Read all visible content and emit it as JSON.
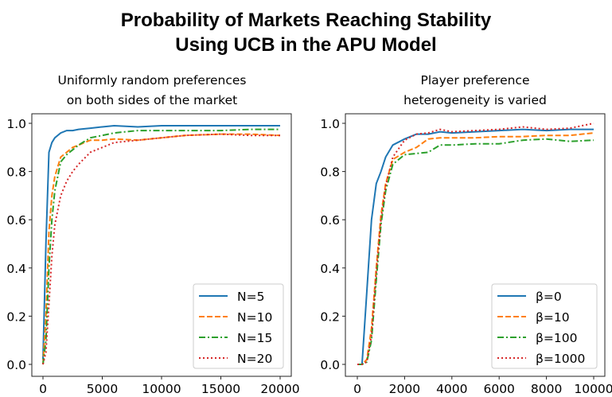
{
  "title_lines": [
    "Probability of Markets Reaching Stability",
    "Using UCB in the APU Model"
  ],
  "chart_data": [
    {
      "type": "line",
      "title_lines": [
        "Uniformly random preferences",
        "on both sides of the market"
      ],
      "xlim": [
        0,
        20000
      ],
      "ylim": [
        0,
        1.0
      ],
      "xticks": [
        0,
        5000,
        10000,
        15000,
        20000
      ],
      "xtick_labels": [
        "0",
        "5000",
        "10000",
        "15000",
        "20000"
      ],
      "yticks": [
        0,
        0.2,
        0.4,
        0.6,
        0.8,
        1.0
      ],
      "ytick_labels": [
        "0.0",
        "0.2",
        "0.4",
        "0.6",
        "0.8",
        "1.0"
      ],
      "grid": false,
      "legend": "bottom-right",
      "x": [
        0,
        250,
        500,
        750,
        1000,
        1500,
        2000,
        2500,
        3000,
        4000,
        5000,
        6000,
        8000,
        10000,
        12000,
        15000,
        17500,
        20000
      ],
      "series": [
        {
          "name": "N=5",
          "color": "#1f77b4",
          "style": "solid",
          "values": [
            0.02,
            0.5,
            0.88,
            0.92,
            0.94,
            0.96,
            0.97,
            0.97,
            0.975,
            0.98,
            0.985,
            0.99,
            0.985,
            0.99,
            0.99,
            0.99,
            0.99,
            0.99
          ]
        },
        {
          "name": "N=10",
          "color": "#ff7f0e",
          "style": "dashed",
          "values": [
            0,
            0.2,
            0.55,
            0.7,
            0.78,
            0.86,
            0.88,
            0.9,
            0.91,
            0.93,
            0.93,
            0.935,
            0.93,
            0.94,
            0.95,
            0.955,
            0.955,
            0.95
          ]
        },
        {
          "name": "N=15",
          "color": "#2ca02c",
          "style": "dashdot",
          "values": [
            0,
            0.1,
            0.4,
            0.6,
            0.72,
            0.84,
            0.87,
            0.89,
            0.91,
            0.94,
            0.95,
            0.96,
            0.97,
            0.97,
            0.97,
            0.97,
            0.975,
            0.975
          ]
        },
        {
          "name": "N=20",
          "color": "#d62728",
          "style": "dotted",
          "values": [
            0,
            0.05,
            0.25,
            0.45,
            0.58,
            0.7,
            0.76,
            0.8,
            0.83,
            0.88,
            0.9,
            0.92,
            0.93,
            0.94,
            0.95,
            0.955,
            0.95,
            0.95
          ]
        }
      ]
    },
    {
      "type": "line",
      "title_lines": [
        "Player preference",
        "heterogeneity is varied"
      ],
      "xlim": [
        0,
        10000
      ],
      "ylim": [
        0,
        1.0
      ],
      "xticks": [
        0,
        2000,
        4000,
        6000,
        8000,
        10000
      ],
      "xtick_labels": [
        "0",
        "2000",
        "4000",
        "6000",
        "8000",
        "10000"
      ],
      "yticks": [
        0,
        0.2,
        0.4,
        0.6,
        0.8,
        1.0
      ],
      "ytick_labels": [
        "0.0",
        "0.2",
        "0.4",
        "0.6",
        "0.8",
        "1.0"
      ],
      "grid": false,
      "legend": "bottom-right",
      "x": [
        0,
        200,
        400,
        600,
        800,
        1000,
        1200,
        1500,
        2000,
        2500,
        3000,
        3500,
        4000,
        5000,
        6000,
        7000,
        8000,
        9000,
        10000
      ],
      "series": [
        {
          "name": "β=0",
          "color": "#1f77b4",
          "style": "solid",
          "values": [
            0,
            0,
            0.3,
            0.6,
            0.75,
            0.8,
            0.86,
            0.91,
            0.935,
            0.955,
            0.955,
            0.965,
            0.96,
            0.965,
            0.97,
            0.975,
            0.97,
            0.975,
            0.975
          ]
        },
        {
          "name": "β=10",
          "color": "#ff7f0e",
          "style": "dashed",
          "values": [
            0,
            0,
            0.02,
            0.15,
            0.4,
            0.62,
            0.75,
            0.85,
            0.88,
            0.9,
            0.935,
            0.94,
            0.94,
            0.94,
            0.945,
            0.945,
            0.95,
            0.95,
            0.96
          ]
        },
        {
          "name": "β=100",
          "color": "#2ca02c",
          "style": "dashdot",
          "values": [
            0,
            0,
            0.01,
            0.1,
            0.35,
            0.58,
            0.72,
            0.83,
            0.87,
            0.875,
            0.88,
            0.91,
            0.91,
            0.915,
            0.915,
            0.93,
            0.935,
            0.925,
            0.93
          ]
        },
        {
          "name": "β=1000",
          "color": "#d62728",
          "style": "dotted",
          "values": [
            0,
            0,
            0.01,
            0.12,
            0.38,
            0.6,
            0.74,
            0.86,
            0.93,
            0.955,
            0.96,
            0.975,
            0.965,
            0.97,
            0.975,
            0.985,
            0.975,
            0.98,
            1.0
          ]
        }
      ]
    }
  ]
}
